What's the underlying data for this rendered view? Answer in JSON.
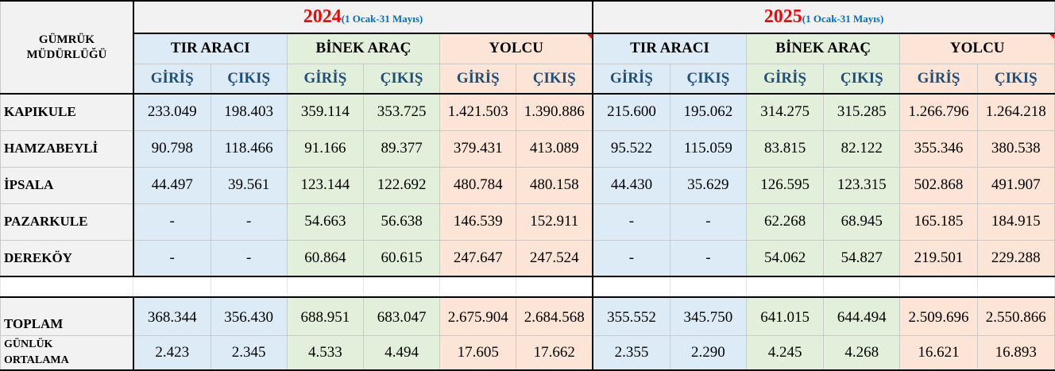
{
  "header": {
    "corner_title": "GÜMRÜK MÜDÜRLÜĞÜ",
    "years": [
      {
        "year": "2024",
        "range": "(1 Ocak-31 Mayıs)"
      },
      {
        "year": "2025",
        "range": "(1 Ocak-31 Mayıs)"
      }
    ],
    "groups": [
      "TIR ARACI",
      "BİNEK ARAÇ",
      "YOLCU"
    ],
    "giris": "GİRİŞ",
    "cikis": "ÇIKIŞ"
  },
  "rows": [
    {
      "name": "KAPIKULE",
      "values": [
        "233.049",
        "198.403",
        "359.114",
        "353.725",
        "1.421.503",
        "1.390.886",
        "215.600",
        "195.062",
        "314.275",
        "315.285",
        "1.266.796",
        "1.264.218"
      ]
    },
    {
      "name": "HAMZABEYLİ",
      "values": [
        "90.798",
        "118.466",
        "91.166",
        "89.377",
        "379.431",
        "413.089",
        "95.522",
        "115.059",
        "83.815",
        "82.122",
        "355.346",
        "380.538"
      ]
    },
    {
      "name": "İPSALA",
      "values": [
        "44.497",
        "39.561",
        "123.144",
        "122.692",
        "480.784",
        "480.158",
        "44.430",
        "35.629",
        "126.595",
        "123.315",
        "502.868",
        "491.907"
      ]
    },
    {
      "name": "PAZARKULE",
      "values": [
        "-",
        "-",
        "54.663",
        "56.638",
        "146.539",
        "152.911",
        "-",
        "-",
        "62.268",
        "68.945",
        "165.185",
        "184.915"
      ]
    },
    {
      "name": "DEREKÖY",
      "values": [
        "-",
        "-",
        "60.864",
        "60.615",
        "247.647",
        "247.524",
        "-",
        "-",
        "54.062",
        "54.827",
        "219.501",
        "229.288"
      ]
    }
  ],
  "total": {
    "name": "TOPLAM",
    "values": [
      "368.344",
      "356.430",
      "688.951",
      "683.047",
      "2.675.904",
      "2.684.568",
      "355.552",
      "345.750",
      "641.015",
      "644.494",
      "2.509.696",
      "2.550.866"
    ]
  },
  "daily": {
    "name_line1": "GÜNLÜK",
    "name_line2": "ORTALAMA",
    "values": [
      "2.423",
      "2.345",
      "4.533",
      "4.494",
      "17.605",
      "17.662",
      "2.355",
      "2.290",
      "4.245",
      "4.268",
      "16.621",
      "16.893"
    ]
  },
  "colors": {
    "blue": "#ddebf7",
    "green": "#e2efda",
    "peach": "#fce4d6",
    "gray": "#f2f2f2",
    "year": "#ff0000",
    "range": "#0070c0"
  }
}
